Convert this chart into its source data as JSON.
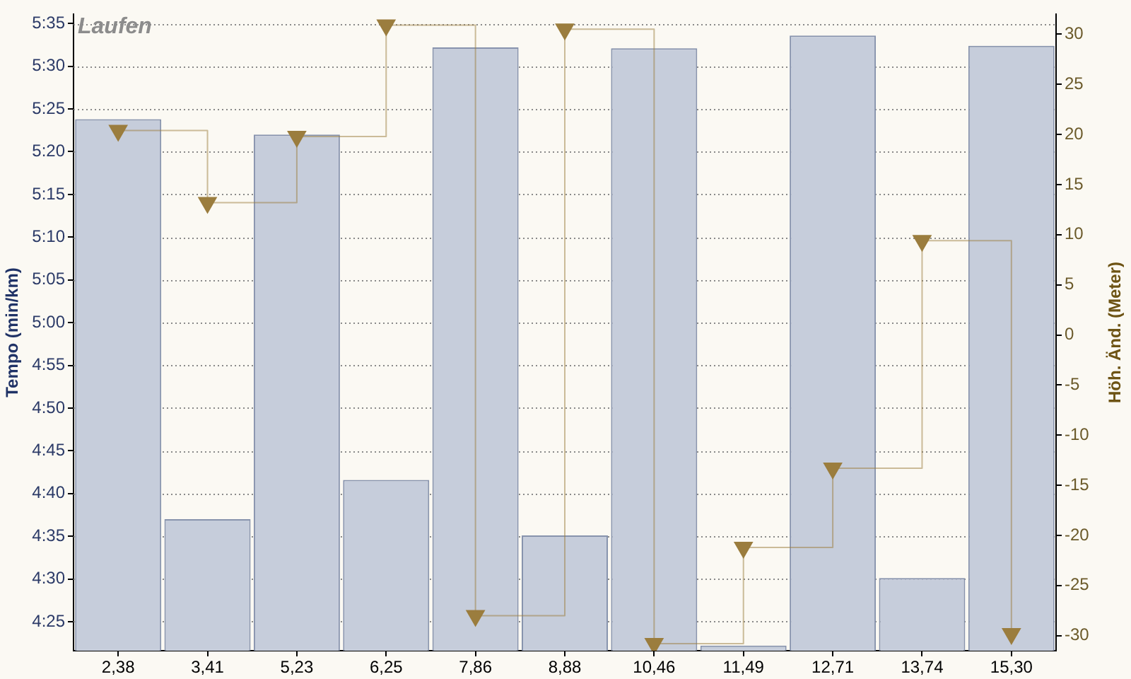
{
  "chart_data": {
    "type": "bar",
    "title": "Laufen",
    "ylabel": "Tempo (min/km)",
    "y2label": "Höh. Änd. (Meter)",
    "categories": [
      "2,38",
      "3,41",
      "5,23",
      "6,25",
      "7,86",
      "8,88",
      "10,46",
      "11,49",
      "12,71",
      "13,74",
      "15,30"
    ],
    "series": [
      {
        "color": "#c6cddb",
        "values": [
          323.8,
          277,
          322,
          281.6,
          332.2,
          275.1,
          332.1,
          262.2,
          333.6,
          270.1,
          332.4
        ]
      },
      {
        "type": "step",
        "axis": "y2",
        "color": "#9b7d3e",
        "values": [
          20.4,
          13.2,
          19.8,
          30.9,
          -28,
          30.5,
          -30.8,
          -21.2,
          -13.3,
          9.4,
          -29.8
        ]
      }
    ],
    "ylim": [
      261.6,
      336.1
    ],
    "yticks": [
      {
        "value": 335,
        "label": "5:35"
      },
      {
        "value": 330,
        "label": "5:30"
      },
      {
        "value": 325,
        "label": "5:25"
      },
      {
        "value": 320,
        "label": "5:20"
      },
      {
        "value": 315,
        "label": "5:15"
      },
      {
        "value": 310,
        "label": "5:10"
      },
      {
        "value": 305,
        "label": "5:05"
      },
      {
        "value": 300,
        "label": "5:00"
      },
      {
        "value": 295,
        "label": "4:55"
      },
      {
        "value": 290,
        "label": "4:50"
      },
      {
        "value": 285,
        "label": "4:45"
      },
      {
        "value": 280,
        "label": "4:40"
      },
      {
        "value": 275,
        "label": "4:35"
      },
      {
        "value": 270,
        "label": "4:30"
      },
      {
        "value": 265,
        "label": "4:25"
      }
    ],
    "y2lim": [
      -31.5,
      32
    ],
    "y2ticks": [
      30,
      25,
      20,
      15,
      10,
      5,
      0,
      -5,
      -10,
      -15,
      -20,
      -25,
      -30
    ],
    "grid": "y",
    "legend": false,
    "marker": "triangle"
  }
}
